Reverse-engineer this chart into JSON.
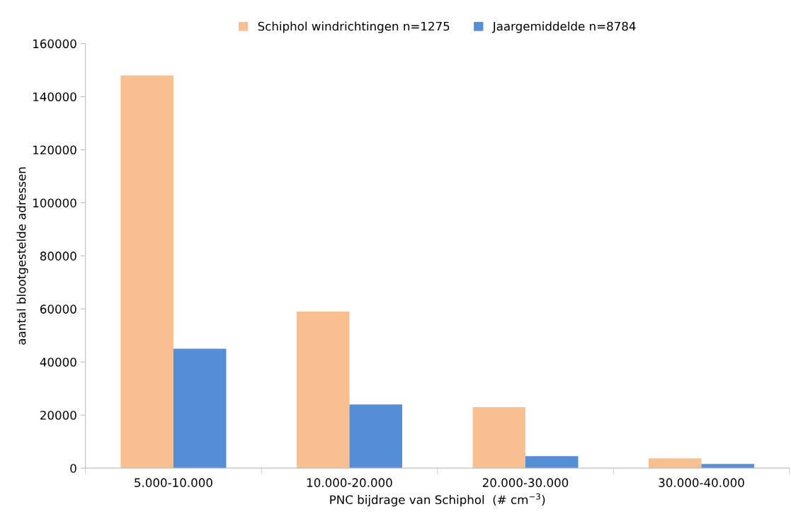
{
  "chart_data": {
    "type": "bar",
    "xlabel": "PNC bijdrage van Schiphol  (# cm$^{−3}$)",
    "ylabel": "aantal blootgestelde adressen",
    "categories": [
      "5.000-10.000",
      "10.000-20.000",
      "20.000-30.000",
      "30.000-40.000"
    ],
    "series": [
      {
        "name": "Schiphol windrichtingen n=1275",
        "color": "#f8c091",
        "values": [
          148000,
          59000,
          23000,
          3700
        ]
      },
      {
        "name": "Jaargemiddelde n=8784",
        "color": "#558ed5",
        "values": [
          45000,
          24000,
          4500,
          1600
        ]
      }
    ],
    "ylim": [
      0,
      160000
    ],
    "yticks": [
      0,
      20000,
      40000,
      60000,
      80000,
      100000,
      120000,
      140000,
      160000
    ],
    "legend": "top",
    "grid": false
  }
}
